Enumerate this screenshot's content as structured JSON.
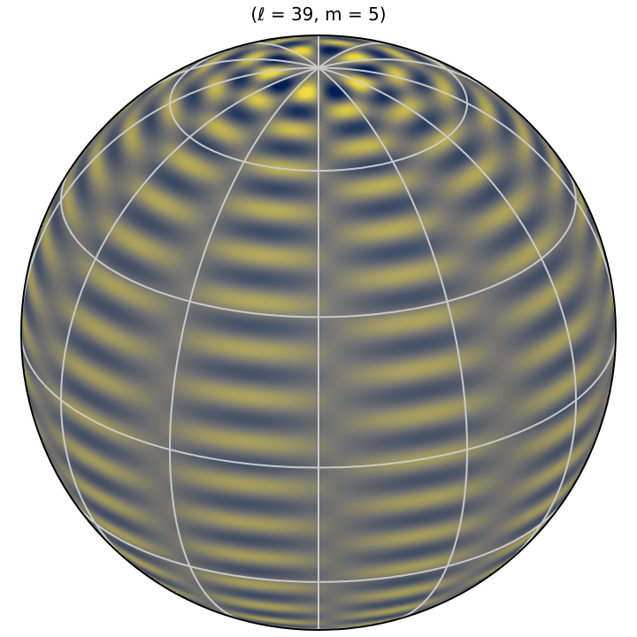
{
  "figure": {
    "title": "(ℓ = 39, m = 5)",
    "colormap": [
      "#00205a",
      "#7c7b78",
      "#ffe945"
    ],
    "grid_color": "#c9c9c9",
    "outline_color": "#000000"
  },
  "harmonic": {
    "l": 39,
    "m": 5
  },
  "view": {
    "pole_tilt_deg": 27
  }
}
